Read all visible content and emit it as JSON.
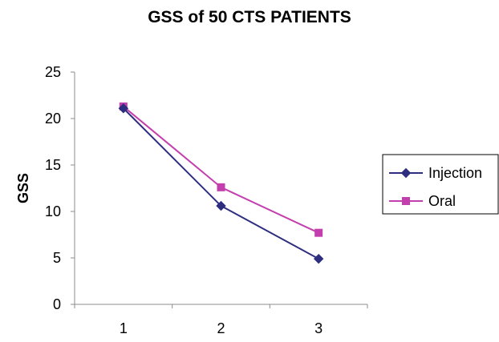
{
  "chart_data": {
    "type": "line",
    "title": "GSS of 50 CTS PATIENTS",
    "xlabel": "",
    "ylabel": "GSS",
    "categories": [
      "1",
      "2",
      "3"
    ],
    "ylim": [
      0,
      25
    ],
    "yticks": [
      0,
      5,
      10,
      15,
      20,
      25
    ],
    "grid": false,
    "legend_position": "right",
    "series": [
      {
        "name": "Injection",
        "values": [
          21.1,
          10.6,
          4.9
        ],
        "color": "#2e2e80",
        "marker": "diamond"
      },
      {
        "name": "Oral",
        "values": [
          21.3,
          12.6,
          7.7
        ],
        "color": "#c43fae",
        "marker": "square"
      }
    ]
  }
}
